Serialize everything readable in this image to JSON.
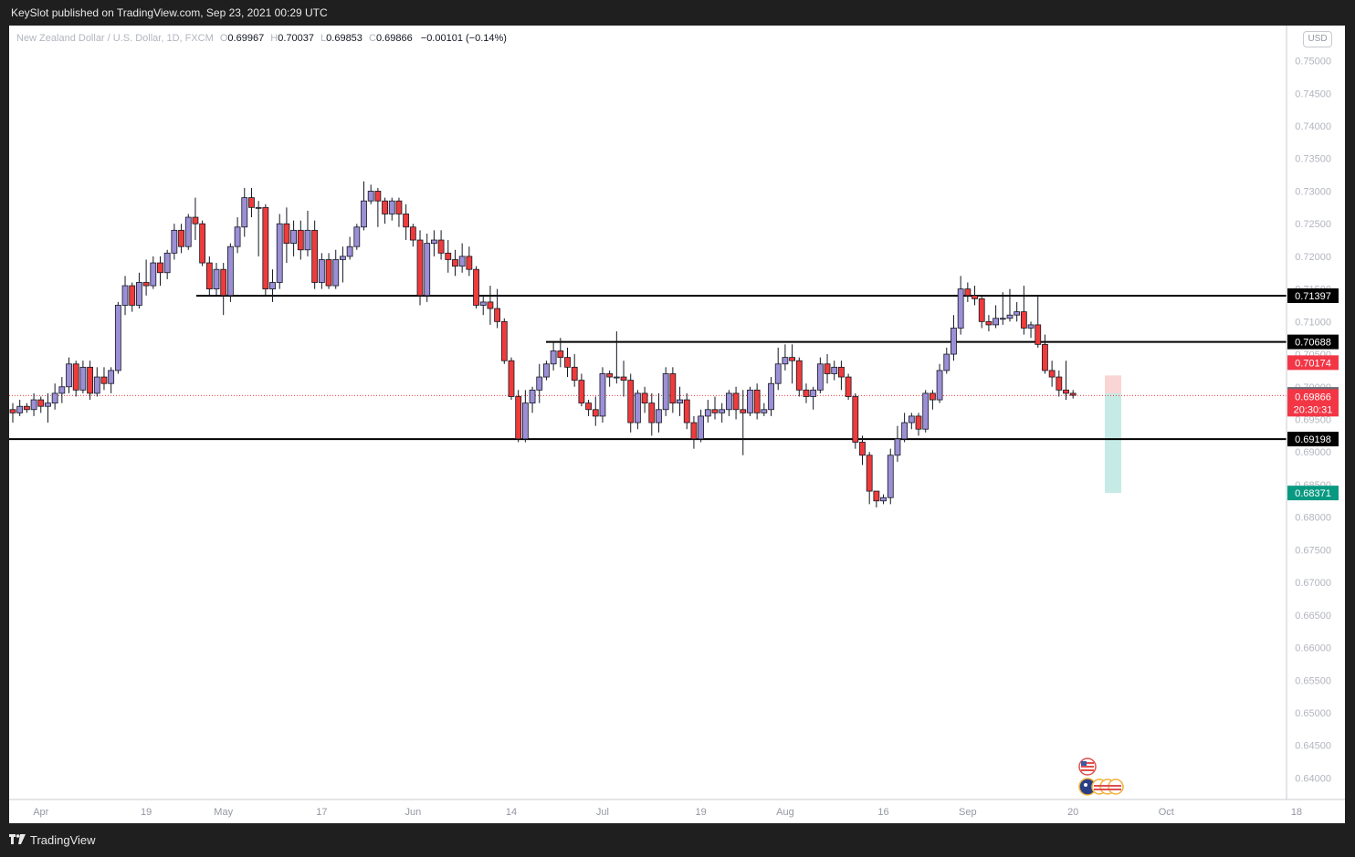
{
  "header": {
    "published": "KeySlot published on TradingView.com, Sep 23, 2021 00:29 UTC"
  },
  "legend": {
    "symbol": "New Zealand Dollar / U.S. Dollar, 1D, FXCM",
    "o_label": "O",
    "open": "0.69967",
    "h_label": "H",
    "high": "0.70037",
    "l_label": "L",
    "low": "0.69853",
    "c_label": "C",
    "close": "0.69866",
    "change": "−0.00101 (−0.14%)"
  },
  "currency_button": "USD",
  "footer": {
    "brand": "TradingView"
  },
  "colors": {
    "bull": "#9c8fd6",
    "bear": "#ef3b3b",
    "teal": "#089981",
    "level": "#000000"
  },
  "chart_data": {
    "type": "candlestick",
    "x_tick_labels": [
      "Apr",
      "19",
      "May",
      "17",
      "Jun",
      "14",
      "Jul",
      "19",
      "Aug",
      "16",
      "Sep",
      "20",
      "Oct",
      "18"
    ],
    "y_tick_labels": [
      "0.75000",
      "0.74500",
      "0.74000",
      "0.73500",
      "0.73000",
      "0.72500",
      "0.72000",
      "0.71500",
      "0.71000",
      "0.70500",
      "0.70000",
      "0.69500",
      "0.69000",
      "0.68500",
      "0.68000",
      "0.67500",
      "0.67000",
      "0.66500",
      "0.66000",
      "0.65500",
      "0.65000",
      "0.64500",
      "0.64000"
    ],
    "ylim": [
      0.6367,
      0.7554
    ],
    "candles": [
      [
        0.6965,
        0.696,
        0.6945,
        0.6975
      ],
      [
        0.696,
        0.697,
        0.6955,
        0.698
      ],
      [
        0.697,
        0.6965,
        0.696,
        0.6975
      ],
      [
        0.6965,
        0.698,
        0.6955,
        0.699
      ],
      [
        0.698,
        0.697,
        0.696,
        0.6985
      ],
      [
        0.697,
        0.6975,
        0.6945,
        0.699
      ],
      [
        0.6975,
        0.699,
        0.6965,
        0.7005
      ],
      [
        0.699,
        0.7,
        0.6975,
        0.7015
      ],
      [
        0.7,
        0.7035,
        0.699,
        0.7045
      ],
      [
        0.7035,
        0.6995,
        0.6985,
        0.704
      ],
      [
        0.6995,
        0.703,
        0.699,
        0.704
      ],
      [
        0.703,
        0.699,
        0.698,
        0.704
      ],
      [
        0.699,
        0.7015,
        0.6985,
        0.703
      ],
      [
        0.7015,
        0.7005,
        0.6995,
        0.703
      ],
      [
        0.7005,
        0.7025,
        0.699,
        0.703
      ],
      [
        0.7025,
        0.7125,
        0.702,
        0.713
      ],
      [
        0.7125,
        0.7155,
        0.711,
        0.717
      ],
      [
        0.7155,
        0.7125,
        0.7115,
        0.716
      ],
      [
        0.7125,
        0.716,
        0.712,
        0.7175
      ],
      [
        0.716,
        0.7155,
        0.714,
        0.7195
      ],
      [
        0.7155,
        0.719,
        0.715,
        0.72
      ],
      [
        0.719,
        0.7175,
        0.7155,
        0.72
      ],
      [
        0.7175,
        0.7205,
        0.7165,
        0.721
      ],
      [
        0.7205,
        0.724,
        0.7195,
        0.725
      ],
      [
        0.724,
        0.7215,
        0.7205,
        0.725
      ],
      [
        0.7215,
        0.726,
        0.721,
        0.7265
      ],
      [
        0.726,
        0.725,
        0.7225,
        0.729
      ],
      [
        0.725,
        0.719,
        0.7185,
        0.7255
      ],
      [
        0.719,
        0.715,
        0.714,
        0.72
      ],
      [
        0.715,
        0.718,
        0.714,
        0.719
      ],
      [
        0.718,
        0.714,
        0.711,
        0.719
      ],
      [
        0.714,
        0.7215,
        0.713,
        0.722
      ],
      [
        0.7215,
        0.7245,
        0.7205,
        0.726
      ],
      [
        0.7245,
        0.729,
        0.723,
        0.7305
      ],
      [
        0.729,
        0.7275,
        0.726,
        0.7305
      ],
      [
        0.7275,
        0.7275,
        0.72,
        0.7285
      ],
      [
        0.7275,
        0.715,
        0.714,
        0.728
      ],
      [
        0.715,
        0.716,
        0.713,
        0.718
      ],
      [
        0.716,
        0.725,
        0.715,
        0.7265
      ],
      [
        0.725,
        0.722,
        0.719,
        0.7275
      ],
      [
        0.722,
        0.724,
        0.72,
        0.7255
      ],
      [
        0.724,
        0.721,
        0.7195,
        0.7255
      ],
      [
        0.721,
        0.724,
        0.72,
        0.727
      ],
      [
        0.724,
        0.716,
        0.715,
        0.7255
      ],
      [
        0.716,
        0.7195,
        0.715,
        0.7205
      ],
      [
        0.7195,
        0.7155,
        0.715,
        0.7205
      ],
      [
        0.7155,
        0.7195,
        0.715,
        0.721
      ],
      [
        0.7195,
        0.72,
        0.716,
        0.7215
      ],
      [
        0.72,
        0.7215,
        0.7195,
        0.723
      ],
      [
        0.7215,
        0.7245,
        0.721,
        0.725
      ],
      [
        0.7245,
        0.7285,
        0.724,
        0.7315
      ],
      [
        0.7285,
        0.73,
        0.728,
        0.731
      ],
      [
        0.73,
        0.7285,
        0.7245,
        0.7305
      ],
      [
        0.7285,
        0.7265,
        0.725,
        0.729
      ],
      [
        0.7265,
        0.7285,
        0.7255,
        0.729
      ],
      [
        0.7285,
        0.7265,
        0.7245,
        0.729
      ],
      [
        0.7265,
        0.7245,
        0.7225,
        0.728
      ],
      [
        0.7245,
        0.7225,
        0.7215,
        0.725
      ],
      [
        0.7225,
        0.714,
        0.7125,
        0.724
      ],
      [
        0.714,
        0.722,
        0.713,
        0.7235
      ],
      [
        0.722,
        0.7225,
        0.72,
        0.724
      ],
      [
        0.7225,
        0.7205,
        0.7195,
        0.724
      ],
      [
        0.7205,
        0.7195,
        0.7175,
        0.7225
      ],
      [
        0.7195,
        0.7185,
        0.717,
        0.721
      ],
      [
        0.7185,
        0.72,
        0.7175,
        0.722
      ],
      [
        0.72,
        0.718,
        0.717,
        0.7215
      ],
      [
        0.718,
        0.7125,
        0.712,
        0.7185
      ],
      [
        0.7125,
        0.713,
        0.711,
        0.714
      ],
      [
        0.713,
        0.712,
        0.7095,
        0.7155
      ],
      [
        0.712,
        0.71,
        0.709,
        0.715
      ],
      [
        0.71,
        0.704,
        0.7035,
        0.7105
      ],
      [
        0.704,
        0.6985,
        0.698,
        0.7045
      ],
      [
        0.6985,
        0.692,
        0.6915,
        0.6995
      ],
      [
        0.692,
        0.6975,
        0.6915,
        0.6995
      ],
      [
        0.6975,
        0.6995,
        0.696,
        0.7
      ],
      [
        0.6995,
        0.7015,
        0.6975,
        0.7035
      ],
      [
        0.7015,
        0.7035,
        0.701,
        0.704
      ],
      [
        0.7035,
        0.7055,
        0.7025,
        0.707
      ],
      [
        0.7055,
        0.7045,
        0.703,
        0.7075
      ],
      [
        0.7045,
        0.703,
        0.7015,
        0.706
      ],
      [
        0.703,
        0.701,
        0.7,
        0.705
      ],
      [
        0.701,
        0.6975,
        0.697,
        0.702
      ],
      [
        0.6975,
        0.6965,
        0.6955,
        0.698
      ],
      [
        0.6965,
        0.6955,
        0.694,
        0.6985
      ],
      [
        0.6955,
        0.702,
        0.6945,
        0.703
      ],
      [
        0.702,
        0.7015,
        0.7,
        0.7025
      ],
      [
        0.7015,
        0.7015,
        0.7005,
        0.7085
      ],
      [
        0.7015,
        0.701,
        0.6985,
        0.704
      ],
      [
        0.701,
        0.6945,
        0.693,
        0.702
      ],
      [
        0.6945,
        0.699,
        0.6935,
        0.6995
      ],
      [
        0.699,
        0.6975,
        0.696,
        0.7
      ],
      [
        0.6975,
        0.6945,
        0.6925,
        0.699
      ],
      [
        0.6945,
        0.6965,
        0.693,
        0.699
      ],
      [
        0.6965,
        0.702,
        0.6955,
        0.703
      ],
      [
        0.702,
        0.6975,
        0.696,
        0.703
      ],
      [
        0.6975,
        0.698,
        0.6955,
        0.7
      ],
      [
        0.698,
        0.6945,
        0.6935,
        0.699
      ],
      [
        0.6945,
        0.692,
        0.6905,
        0.6955
      ],
      [
        0.692,
        0.6955,
        0.6915,
        0.6965
      ],
      [
        0.6955,
        0.6965,
        0.6945,
        0.698
      ],
      [
        0.6965,
        0.696,
        0.695,
        0.6985
      ],
      [
        0.696,
        0.6965,
        0.6945,
        0.6975
      ],
      [
        0.6965,
        0.699,
        0.6955,
        0.6995
      ],
      [
        0.699,
        0.6965,
        0.695,
        0.7
      ],
      [
        0.6965,
        0.696,
        0.6895,
        0.6995
      ],
      [
        0.696,
        0.6995,
        0.6955,
        0.7
      ],
      [
        0.6995,
        0.696,
        0.695,
        0.7005
      ],
      [
        0.696,
        0.6965,
        0.6955,
        0.6975
      ],
      [
        0.6965,
        0.7005,
        0.6955,
        0.7015
      ],
      [
        0.7005,
        0.7035,
        0.6995,
        0.706
      ],
      [
        0.7035,
        0.7045,
        0.7025,
        0.7065
      ],
      [
        0.7045,
        0.704,
        0.7005,
        0.7065
      ],
      [
        0.704,
        0.6995,
        0.6985,
        0.7045
      ],
      [
        0.6995,
        0.6985,
        0.6975,
        0.7005
      ],
      [
        0.6985,
        0.6995,
        0.6965,
        0.7
      ],
      [
        0.6995,
        0.7035,
        0.699,
        0.7045
      ],
      [
        0.7035,
        0.702,
        0.7005,
        0.705
      ],
      [
        0.702,
        0.703,
        0.701,
        0.704
      ],
      [
        0.703,
        0.7015,
        0.6995,
        0.704
      ],
      [
        0.7015,
        0.6985,
        0.698,
        0.702
      ],
      [
        0.6985,
        0.6915,
        0.6905,
        0.699
      ],
      [
        0.6915,
        0.6895,
        0.688,
        0.6925
      ],
      [
        0.6895,
        0.684,
        0.682,
        0.69
      ],
      [
        0.684,
        0.6825,
        0.6815,
        0.684
      ],
      [
        0.6825,
        0.683,
        0.682,
        0.6835
      ],
      [
        0.683,
        0.6895,
        0.682,
        0.6905
      ],
      [
        0.6895,
        0.692,
        0.6885,
        0.694
      ],
      [
        0.692,
        0.6945,
        0.6915,
        0.696
      ],
      [
        0.6945,
        0.6955,
        0.6935,
        0.696
      ],
      [
        0.6955,
        0.6935,
        0.6925,
        0.696
      ],
      [
        0.6935,
        0.699,
        0.693,
        0.6995
      ],
      [
        0.699,
        0.698,
        0.6965,
        0.6995
      ],
      [
        0.698,
        0.7025,
        0.6975,
        0.7035
      ],
      [
        0.7025,
        0.705,
        0.702,
        0.706
      ],
      [
        0.705,
        0.709,
        0.704,
        0.711
      ],
      [
        0.709,
        0.715,
        0.708,
        0.717
      ],
      [
        0.715,
        0.714,
        0.713,
        0.716
      ],
      [
        0.714,
        0.7135,
        0.7125,
        0.7155
      ],
      [
        0.7135,
        0.71,
        0.709,
        0.714
      ],
      [
        0.71,
        0.7095,
        0.7085,
        0.711
      ],
      [
        0.7095,
        0.7105,
        0.709,
        0.7125
      ],
      [
        0.7105,
        0.7105,
        0.7095,
        0.7145
      ],
      [
        0.7105,
        0.711,
        0.71,
        0.715
      ],
      [
        0.711,
        0.7115,
        0.71,
        0.713
      ],
      [
        0.7115,
        0.709,
        0.708,
        0.7155
      ],
      [
        0.709,
        0.7095,
        0.7075,
        0.71
      ],
      [
        0.7095,
        0.7065,
        0.706,
        0.714
      ],
      [
        0.7065,
        0.7025,
        0.702,
        0.708
      ],
      [
        0.7025,
        0.7015,
        0.7,
        0.704
      ],
      [
        0.7015,
        0.6995,
        0.6985,
        0.7025
      ],
      [
        0.6995,
        0.699,
        0.698,
        0.704
      ],
      [
        0.699,
        0.6987,
        0.6982,
        0.6995
      ]
    ],
    "levels": [
      0.71397,
      0.70688,
      0.69198
    ],
    "price_labels": {
      "level_1": "0.71397",
      "level_2": "0.70688",
      "stop": "0.70174",
      "entry": "0.69898",
      "last": "0.69866",
      "countdown": "20:30:31",
      "level_3": "0.69198",
      "target": "0.68371"
    },
    "position": {
      "entry": 0.69898,
      "stop": 0.70174,
      "target": 0.68371
    },
    "last_price": 0.69866
  }
}
